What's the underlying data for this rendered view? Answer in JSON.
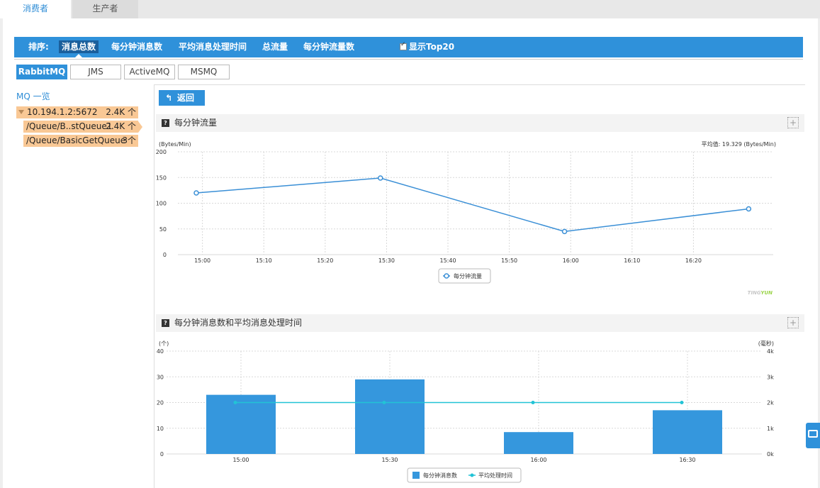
{
  "top_tabs": {
    "active": "消费者",
    "inactive": "生产者"
  },
  "sortbar": {
    "label": "排序:",
    "items": [
      "消息总数",
      "每分钟消息数",
      "平均消息处理时间",
      "总流量",
      "每分钟流量数"
    ],
    "selected": "消息总数",
    "top20_label": "显示Top20",
    "top20_checked": true
  },
  "mq_tabs": [
    "RabbitMQ",
    "JMS",
    "ActiveMQ",
    "MSMQ"
  ],
  "mq_tabs_active": "RabbitMQ",
  "sidebar": {
    "title": "MQ 一览",
    "tree": [
      {
        "name": "10.194.1.2:5672",
        "count": "2.4K 个"
      },
      {
        "name": "/Queue/B..stQueue1",
        "count": "2.4K 个"
      },
      {
        "name": "/Queue/BasicGetQueue",
        "count": "3个"
      }
    ]
  },
  "back_button": "返回",
  "colors": {
    "accent": "#2f91da",
    "tree_highlight": "#f9c895",
    "line": "#3a8fd6",
    "avg_line": "#22c3d6"
  },
  "chart_data": [
    {
      "type": "line",
      "title": "每分钟流量",
      "ylabel": "(Bytes/Min)",
      "avg_label": "平均值: 19.329 (Bytes/Min)",
      "x_ticks": [
        "15:00",
        "15:10",
        "15:20",
        "15:30",
        "15:40",
        "15:50",
        "16:00",
        "16:10",
        "16:20"
      ],
      "y_ticks": [
        "0",
        "50",
        "100",
        "150",
        "200"
      ],
      "ylim": [
        0,
        200
      ],
      "series": [
        {
          "name": "每分钟流量",
          "x": [
            "14:59",
            "15:29",
            "15:59",
            "16:29"
          ],
          "values": [
            120,
            149,
            45,
            89
          ]
        }
      ],
      "watermark_part1": "TING",
      "watermark_part2": "YUN"
    },
    {
      "type": "bar",
      "title": "每分钟消息数和平均消息处理时间",
      "ylabel_left": "(个)",
      "ylabel_right": "(毫秒)",
      "categories": [
        "15:00",
        "15:30",
        "16:00",
        "16:30"
      ],
      "y_ticks_left": [
        "0",
        "10",
        "20",
        "30",
        "40"
      ],
      "y_ticks_right": [
        "0k",
        "1k",
        "2k",
        "3k",
        "4k"
      ],
      "ylim_left": [
        0,
        40
      ],
      "ylim_right": [
        0,
        4000
      ],
      "series": [
        {
          "name": "每分钟消息数",
          "axis": "left",
          "kind": "bar",
          "values": [
            23,
            29,
            8.5,
            17
          ]
        },
        {
          "name": "平均处理时间",
          "axis": "right",
          "kind": "line",
          "values": [
            2000,
            2000,
            2000,
            2000
          ]
        }
      ]
    }
  ]
}
